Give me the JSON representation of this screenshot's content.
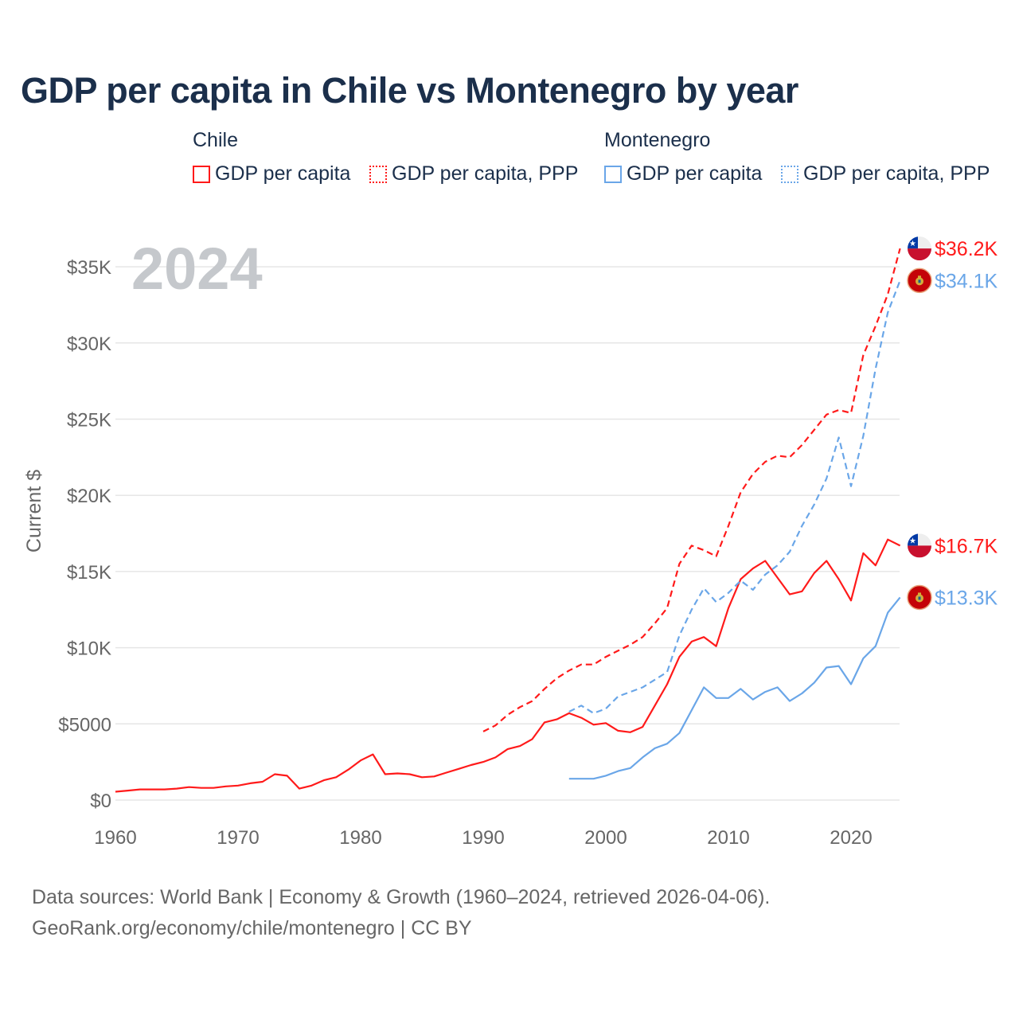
{
  "colors": {
    "chile": "#ff1a1a",
    "montenegro": "#6aa6e8",
    "grid": "#e6e6e6",
    "axis_text": "#666666",
    "year_watermark": "#c5c8cc"
  },
  "footer": {
    "line1": "Data sources: World Bank | Economy & Growth (1960–2024, retrieved 2026-04-06).",
    "line2": "GeoRank.org/economy/chile/montenegro | CC BY"
  },
  "chart_data": {
    "type": "line",
    "title": "GDP per capita in Chile vs Montenegro by year",
    "ylabel": "Current $",
    "xlabel": "",
    "year_label": "2024",
    "xlim": [
      1960,
      2024
    ],
    "ylim": [
      0,
      37000
    ],
    "x_ticks": [
      1960,
      1970,
      1980,
      1990,
      2000,
      2010,
      2020
    ],
    "x_tick_labels": [
      "1960",
      "1970",
      "1980",
      "1990",
      "2000",
      "2010",
      "2020"
    ],
    "y_ticks": [
      0,
      5000,
      10000,
      15000,
      20000,
      25000,
      30000,
      35000
    ],
    "y_tick_labels": [
      "$0",
      "$5000",
      "$10K",
      "$15K",
      "$20K",
      "$25K",
      "$30K",
      "$35K"
    ],
    "grid": true,
    "legend": {
      "placement": "top",
      "groups": [
        {
          "label": "Chile",
          "items": [
            "GDP per capita",
            "GDP per capita, PPP"
          ]
        },
        {
          "label": "Montenegro",
          "items": [
            "GDP per capita",
            "GDP per capita, PPP"
          ]
        }
      ]
    },
    "series": [
      {
        "name": "Chile GDP per capita",
        "country": "chile",
        "dashed": false,
        "start": 1960,
        "end_label": "$16.7K",
        "values": [
          550,
          620,
          700,
          700,
          700,
          750,
          850,
          800,
          800,
          900,
          950,
          1100,
          1200,
          1700,
          1600,
          750,
          950,
          1300,
          1500,
          2000,
          2600,
          3000,
          1700,
          1750,
          1700,
          1500,
          1550,
          1800,
          2050,
          2300,
          2500,
          2800,
          3350,
          3550,
          4000,
          5100,
          5300,
          5700,
          5400,
          4950,
          5050,
          4550,
          4450,
          4800,
          6200,
          7600,
          9400,
          10400,
          10700,
          10100,
          12600,
          14500,
          15200,
          15700,
          14600,
          13500,
          13700,
          14900,
          15700,
          14500,
          13100,
          16200,
          15400,
          17100,
          16700
        ]
      },
      {
        "name": "Chile GDP per capita, PPP",
        "country": "chile",
        "dashed": true,
        "start": 1990,
        "end_label": "$36.2K",
        "values": [
          4500,
          4900,
          5600,
          6100,
          6500,
          7300,
          8000,
          8500,
          8900,
          8900,
          9400,
          9800,
          10200,
          10700,
          11600,
          12600,
          15500,
          16700,
          16400,
          16000,
          18000,
          20200,
          21400,
          22200,
          22600,
          22500,
          23300,
          24300,
          25300,
          25600,
          25400,
          29200,
          31100,
          33200,
          36200
        ]
      },
      {
        "name": "Montenegro GDP per capita",
        "country": "montenegro",
        "dashed": false,
        "start": 1997,
        "end_label": "$13.3K",
        "values": [
          1400,
          1400,
          1400,
          1600,
          1900,
          2100,
          2800,
          3400,
          3700,
          4400,
          5900,
          7400,
          6700,
          6700,
          7300,
          6600,
          7100,
          7400,
          6500,
          7000,
          7700,
          8700,
          8800,
          7600,
          9300,
          10100,
          12300,
          13300
        ]
      },
      {
        "name": "Montenegro GDP per capita, PPP",
        "country": "montenegro",
        "dashed": true,
        "start": 1997,
        "end_label": "$34.1K",
        "values": [
          5800,
          6200,
          5700,
          6000,
          6800,
          7100,
          7400,
          7900,
          8400,
          10800,
          12500,
          13900,
          13000,
          13600,
          14400,
          13800,
          14800,
          15400,
          16300,
          18000,
          19400,
          21100,
          23800,
          20600,
          23900,
          28300,
          32000,
          34100
        ]
      }
    ]
  }
}
